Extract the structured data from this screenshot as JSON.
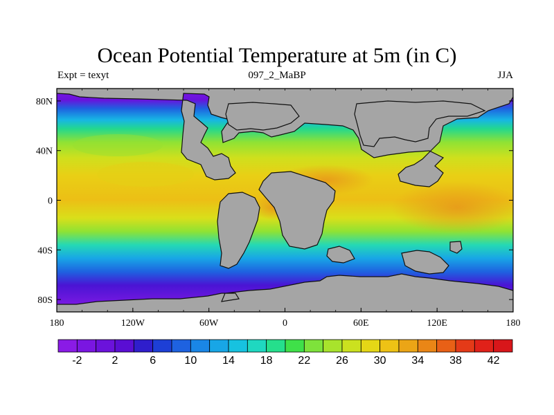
{
  "title": "Ocean Potential Temperature at 5m (in C)",
  "subtitle_left": "Expt = texyt",
  "subtitle_center": "097_2_MaBP",
  "subtitle_right": "JJA",
  "x_ticks": [
    "180",
    "120W",
    "60W",
    "0",
    "60E",
    "120E",
    "180"
  ],
  "y_ticks": [
    "80N",
    "40N",
    "0",
    "40S",
    "80S"
  ],
  "colorbar": {
    "colors": [
      "#8a1be6",
      "#7a16e1",
      "#6b12db",
      "#5a0ed3",
      "#2f1ecc",
      "#1d3fd6",
      "#1e62e0",
      "#1a86e6",
      "#18a6e6",
      "#17c2e0",
      "#1fd8c0",
      "#25df8c",
      "#3fe049",
      "#7ee23b",
      "#a8e32c",
      "#cbe11f",
      "#e5d716",
      "#eec215",
      "#eba516",
      "#ea8616",
      "#e86016",
      "#e43a18",
      "#e02119",
      "#d8161a"
    ],
    "labels": [
      "-2",
      "2",
      "6",
      "10",
      "14",
      "18",
      "22",
      "26",
      "30",
      "34",
      "38",
      "42"
    ]
  },
  "colors": {
    "land": "#a5a5a5",
    "coast": "#101010"
  }
}
